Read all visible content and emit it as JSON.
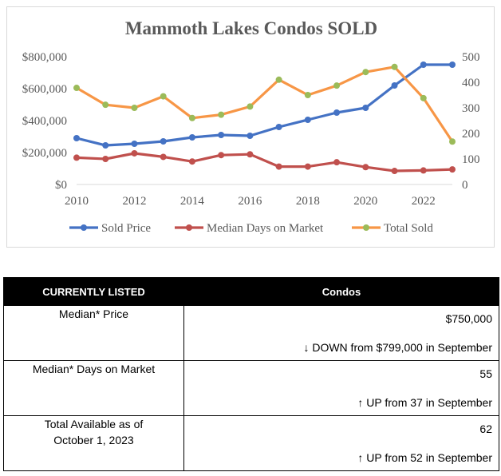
{
  "chart_data": {
    "type": "line",
    "title": "Mammoth Lakes Condos SOLD",
    "x": [
      2010,
      2011,
      2012,
      2013,
      2014,
      2015,
      2016,
      2017,
      2018,
      2019,
      2020,
      2021,
      2022,
      2023
    ],
    "x_ticks": [
      "2010",
      "2012",
      "2014",
      "2016",
      "2018",
      "2020",
      "2022"
    ],
    "xlim": [
      2010,
      2023
    ],
    "y_left": {
      "min": 0,
      "max": 800000,
      "ticks": [
        "$0",
        "$200,000",
        "$400,000",
        "$600,000",
        "$800,000"
      ]
    },
    "y_right": {
      "min": 0,
      "max": 500,
      "ticks": [
        "0",
        "100",
        "200",
        "300",
        "400",
        "500"
      ]
    },
    "series": [
      {
        "name": "Sold Price",
        "axis": "left",
        "color": "#4472c4",
        "values": [
          290000,
          245000,
          255000,
          270000,
          295000,
          310000,
          305000,
          360000,
          405000,
          450000,
          480000,
          620000,
          750000,
          750000
        ]
      },
      {
        "name": "Median Days on Market",
        "axis": "right",
        "color": "#c0504d",
        "values": [
          105,
          100,
          122,
          108,
          90,
          115,
          118,
          70,
          70,
          87,
          68,
          53,
          55,
          59
        ]
      },
      {
        "name": "Total Sold",
        "axis": "right",
        "color": "#f79646",
        "marker_color": "#9bbb59",
        "values": [
          378,
          312,
          300,
          345,
          260,
          273,
          305,
          410,
          350,
          387,
          440,
          460,
          338,
          168
        ]
      }
    ],
    "legend_position": "bottom"
  },
  "table": {
    "headers": [
      "CURRENTLY LISTED",
      "Condos"
    ],
    "rows": [
      {
        "label": "Median* Price",
        "value": "$750,000",
        "change": "↓ DOWN from $799,000 in September"
      },
      {
        "label": "Median* Days on Market",
        "value": "55",
        "change": "↑ UP from 37 in September"
      },
      {
        "label": "Total Available as of October 1, 2023",
        "value": "62",
        "change": "↑ UP from 52 in September"
      }
    ]
  }
}
